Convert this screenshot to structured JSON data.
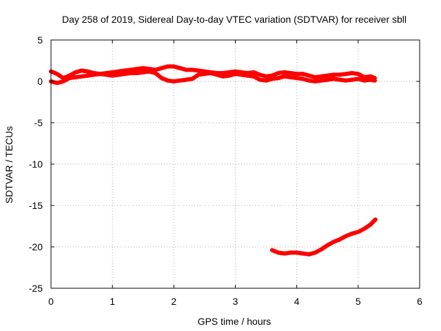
{
  "chart_data": {
    "type": "scatter",
    "title": "Day 258 of 2019, Sidereal Day-to-day VTEC variation (SDTVAR) for receiver sbll",
    "xlabel": "GPS time / hours",
    "ylabel": "SDTVAR / TECUs",
    "xlim": [
      0,
      6
    ],
    "ylim": [
      -25,
      5
    ],
    "xticks": [
      "0",
      "1",
      "2",
      "3",
      "4",
      "5",
      "6"
    ],
    "yticks": [
      "5",
      "0",
      "-5",
      "-10",
      "-15",
      "-20",
      "-25"
    ],
    "grid": true,
    "legend": "none",
    "marker": "+",
    "color": "#ff0000",
    "series": [
      {
        "values": [
          {
            "x": 0.0,
            "y": 1.2
          },
          {
            "x": 0.1,
            "y": 0.9
          },
          {
            "x": 0.2,
            "y": 0.4
          },
          {
            "x": 0.3,
            "y": 0.7
          },
          {
            "x": 0.4,
            "y": 1.1
          },
          {
            "x": 0.5,
            "y": 1.3
          },
          {
            "x": 0.6,
            "y": 1.2
          },
          {
            "x": 0.7,
            "y": 1.0
          },
          {
            "x": 0.8,
            "y": 0.9
          },
          {
            "x": 0.9,
            "y": 1.0
          },
          {
            "x": 1.0,
            "y": 1.1
          },
          {
            "x": 1.1,
            "y": 1.2
          },
          {
            "x": 1.2,
            "y": 1.3
          },
          {
            "x": 1.3,
            "y": 1.4
          },
          {
            "x": 1.4,
            "y": 1.5
          },
          {
            "x": 1.5,
            "y": 1.6
          },
          {
            "x": 1.6,
            "y": 1.5
          },
          {
            "x": 1.7,
            "y": 1.4
          },
          {
            "x": 1.8,
            "y": 1.6
          },
          {
            "x": 1.9,
            "y": 1.8
          },
          {
            "x": 2.0,
            "y": 1.8
          },
          {
            "x": 2.1,
            "y": 1.6
          },
          {
            "x": 2.2,
            "y": 1.4
          },
          {
            "x": 2.3,
            "y": 1.4
          },
          {
            "x": 2.4,
            "y": 1.3
          },
          {
            "x": 2.5,
            "y": 1.2
          },
          {
            "x": 2.6,
            "y": 1.1
          },
          {
            "x": 2.7,
            "y": 1.0
          },
          {
            "x": 2.8,
            "y": 1.0
          },
          {
            "x": 2.9,
            "y": 1.1
          },
          {
            "x": 3.0,
            "y": 1.2
          },
          {
            "x": 3.1,
            "y": 1.1
          },
          {
            "x": 3.2,
            "y": 1.0
          },
          {
            "x": 3.3,
            "y": 1.1
          },
          {
            "x": 3.4,
            "y": 0.8
          },
          {
            "x": 3.5,
            "y": 0.6
          },
          {
            "x": 3.6,
            "y": 0.7
          },
          {
            "x": 3.7,
            "y": 1.0
          },
          {
            "x": 3.8,
            "y": 1.1
          },
          {
            "x": 3.9,
            "y": 1.0
          },
          {
            "x": 4.0,
            "y": 0.9
          },
          {
            "x": 4.1,
            "y": 0.9
          },
          {
            "x": 4.2,
            "y": 0.7
          },
          {
            "x": 4.3,
            "y": 0.5
          },
          {
            "x": 4.4,
            "y": 0.6
          },
          {
            "x": 4.5,
            "y": 0.7
          },
          {
            "x": 4.6,
            "y": 0.8
          },
          {
            "x": 4.7,
            "y": 0.8
          },
          {
            "x": 4.8,
            "y": 0.9
          },
          {
            "x": 4.9,
            "y": 1.0
          },
          {
            "x": 5.0,
            "y": 0.9
          },
          {
            "x": 5.1,
            "y": 0.5
          },
          {
            "x": 5.2,
            "y": 0.6
          },
          {
            "x": 5.27,
            "y": 0.4
          }
        ]
      },
      {
        "values": [
          {
            "x": 0.0,
            "y": 0.0
          },
          {
            "x": 0.1,
            "y": -0.2
          },
          {
            "x": 0.2,
            "y": 0.0
          },
          {
            "x": 0.3,
            "y": 0.4
          },
          {
            "x": 0.4,
            "y": 0.5
          },
          {
            "x": 0.5,
            "y": 0.6
          },
          {
            "x": 0.6,
            "y": 0.7
          },
          {
            "x": 0.7,
            "y": 0.8
          },
          {
            "x": 0.8,
            "y": 0.9
          },
          {
            "x": 0.9,
            "y": 0.8
          },
          {
            "x": 1.0,
            "y": 0.7
          },
          {
            "x": 1.1,
            "y": 0.8
          },
          {
            "x": 1.2,
            "y": 0.9
          },
          {
            "x": 1.3,
            "y": 1.0
          },
          {
            "x": 1.4,
            "y": 1.0
          },
          {
            "x": 1.5,
            "y": 1.1
          },
          {
            "x": 1.6,
            "y": 1.2
          },
          {
            "x": 1.7,
            "y": 1.0
          },
          {
            "x": 1.8,
            "y": 0.4
          },
          {
            "x": 1.9,
            "y": 0.1
          },
          {
            "x": 2.0,
            "y": 0.0
          },
          {
            "x": 2.1,
            "y": 0.1
          },
          {
            "x": 2.2,
            "y": 0.2
          },
          {
            "x": 2.3,
            "y": 0.3
          },
          {
            "x": 2.4,
            "y": 0.8
          },
          {
            "x": 2.5,
            "y": 0.9
          },
          {
            "x": 2.6,
            "y": 1.0
          },
          {
            "x": 2.7,
            "y": 0.8
          },
          {
            "x": 2.8,
            "y": 0.6
          },
          {
            "x": 2.9,
            "y": 0.7
          },
          {
            "x": 3.0,
            "y": 0.9
          },
          {
            "x": 3.1,
            "y": 0.8
          },
          {
            "x": 3.2,
            "y": 0.7
          },
          {
            "x": 3.3,
            "y": 0.6
          },
          {
            "x": 3.4,
            "y": 0.2
          },
          {
            "x": 3.5,
            "y": 0.1
          },
          {
            "x": 3.6,
            "y": 0.3
          },
          {
            "x": 3.7,
            "y": 0.4
          },
          {
            "x": 3.8,
            "y": 0.6
          },
          {
            "x": 3.9,
            "y": 0.5
          },
          {
            "x": 4.0,
            "y": 0.4
          },
          {
            "x": 4.1,
            "y": 0.3
          },
          {
            "x": 4.2,
            "y": 0.1
          },
          {
            "x": 4.3,
            "y": 0.0
          },
          {
            "x": 4.4,
            "y": 0.1
          },
          {
            "x": 4.5,
            "y": 0.2
          },
          {
            "x": 4.6,
            "y": 0.3
          },
          {
            "x": 4.7,
            "y": 0.2
          },
          {
            "x": 4.8,
            "y": 0.1
          },
          {
            "x": 4.9,
            "y": 0.2
          },
          {
            "x": 5.0,
            "y": 0.3
          },
          {
            "x": 5.1,
            "y": 0.1
          },
          {
            "x": 5.2,
            "y": 0.2
          },
          {
            "x": 5.27,
            "y": 0.1
          }
        ]
      },
      {
        "values": [
          {
            "x": 3.6,
            "y": -20.4
          },
          {
            "x": 3.7,
            "y": -20.7
          },
          {
            "x": 3.8,
            "y": -20.8
          },
          {
            "x": 3.9,
            "y": -20.7
          },
          {
            "x": 4.0,
            "y": -20.7
          },
          {
            "x": 4.1,
            "y": -20.8
          },
          {
            "x": 4.2,
            "y": -20.9
          },
          {
            "x": 4.3,
            "y": -20.7
          },
          {
            "x": 4.4,
            "y": -20.3
          },
          {
            "x": 4.5,
            "y": -19.8
          },
          {
            "x": 4.6,
            "y": -19.4
          },
          {
            "x": 4.7,
            "y": -19.1
          },
          {
            "x": 4.8,
            "y": -18.7
          },
          {
            "x": 4.9,
            "y": -18.4
          },
          {
            "x": 5.0,
            "y": -18.2
          },
          {
            "x": 5.1,
            "y": -17.8
          },
          {
            "x": 5.2,
            "y": -17.3
          },
          {
            "x": 5.28,
            "y": -16.7
          }
        ]
      }
    ]
  }
}
